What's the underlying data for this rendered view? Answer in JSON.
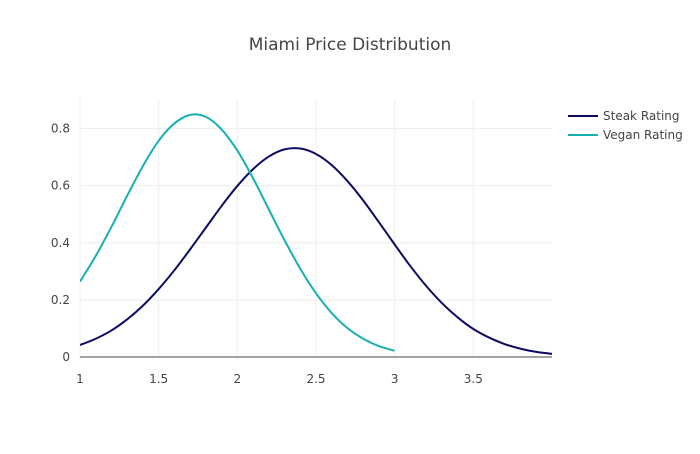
{
  "chart_data": {
    "type": "line",
    "title": "Miami Price Distribution",
    "xlabel": "",
    "ylabel": "",
    "xlim": [
      1,
      4
    ],
    "ylim": [
      0,
      0.9
    ],
    "x_ticks": [
      1,
      1.5,
      2,
      2.5,
      3,
      3.5
    ],
    "x_tick_labels": [
      "1",
      "1.5",
      "2",
      "2.5",
      "3",
      "3.5"
    ],
    "y_ticks": [
      0,
      0.2,
      0.4,
      0.6,
      0.8
    ],
    "y_tick_labels": [
      "0",
      "0.2",
      "0.4",
      "0.6",
      "0.8"
    ],
    "grid": true,
    "legend_position": "top-right",
    "series": [
      {
        "name": "Steak Rating",
        "color": "#0b0b66",
        "x": [
          1.0,
          1.1,
          1.2,
          1.3,
          1.4,
          1.5,
          1.6,
          1.7,
          1.8,
          1.9,
          2.0,
          2.1,
          2.2,
          2.3,
          2.4,
          2.5,
          2.6,
          2.7,
          2.8,
          2.9,
          3.0,
          3.1,
          3.2,
          3.3,
          3.4,
          3.5,
          3.6,
          3.7,
          3.8,
          3.9,
          4.0
        ],
        "y": [
          0.042,
          0.064,
          0.093,
          0.132,
          0.18,
          0.238,
          0.304,
          0.377,
          0.453,
          0.529,
          0.599,
          0.658,
          0.702,
          0.727,
          0.73,
          0.711,
          0.672,
          0.616,
          0.548,
          0.472,
          0.394,
          0.318,
          0.249,
          0.189,
          0.139,
          0.098,
          0.068,
          0.045,
          0.029,
          0.018,
          0.011
        ]
      },
      {
        "name": "Vegan Rating",
        "color": "#17b0b0",
        "x": [
          1.0,
          1.1,
          1.2,
          1.3,
          1.4,
          1.5,
          1.6,
          1.7,
          1.8,
          1.9,
          2.0,
          2.1,
          2.2,
          2.3,
          2.4,
          2.5,
          2.6,
          2.7,
          2.8,
          2.9,
          3.0
        ],
        "y": [
          0.264,
          0.354,
          0.456,
          0.565,
          0.669,
          0.757,
          0.818,
          0.848,
          0.841,
          0.797,
          0.723,
          0.626,
          0.517,
          0.409,
          0.309,
          0.223,
          0.154,
          0.101,
          0.064,
          0.038,
          0.022
        ]
      }
    ]
  }
}
